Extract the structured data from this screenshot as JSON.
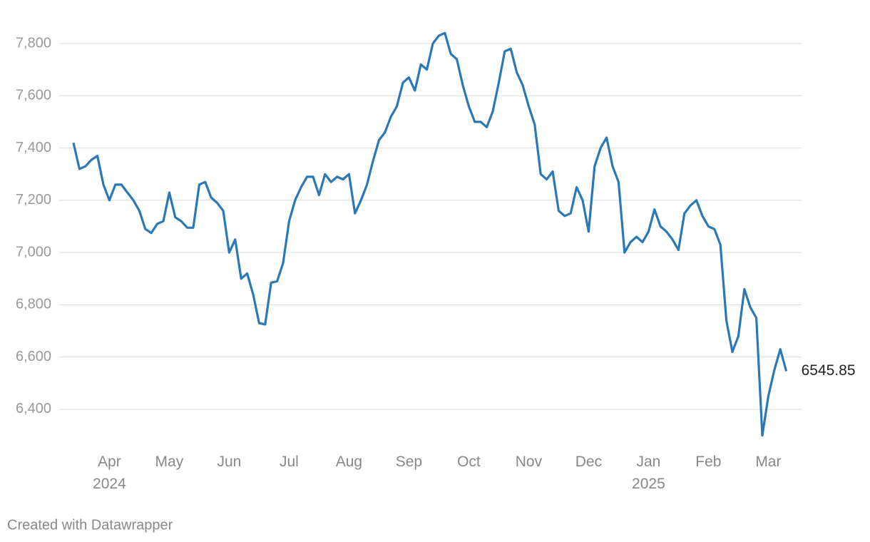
{
  "chart_data": {
    "type": "line",
    "categories": [
      null,
      null,
      null,
      null,
      null,
      null,
      "Apr 2024",
      null,
      null,
      null,
      null,
      null,
      null,
      null,
      null,
      null,
      "May",
      null,
      null,
      null,
      null,
      null,
      null,
      null,
      null,
      null,
      "Jun",
      null,
      null,
      null,
      null,
      null,
      null,
      null,
      null,
      null,
      "Jul",
      null,
      null,
      null,
      null,
      null,
      null,
      null,
      null,
      null,
      "Aug",
      null,
      null,
      null,
      null,
      null,
      null,
      null,
      null,
      null,
      "Sep",
      null,
      null,
      null,
      null,
      null,
      null,
      null,
      null,
      null,
      "Oct",
      null,
      null,
      null,
      null,
      null,
      null,
      null,
      null,
      null,
      "Nov",
      null,
      null,
      null,
      null,
      null,
      null,
      null,
      null,
      null,
      "Dec",
      null,
      null,
      null,
      null,
      null,
      null,
      null,
      null,
      null,
      "Jan 2025",
      null,
      null,
      null,
      null,
      null,
      null,
      null,
      null,
      null,
      "Feb",
      null,
      null,
      null,
      null,
      null,
      null,
      null,
      null,
      null,
      "Mar",
      null,
      null,
      null
    ],
    "values": [
      7420,
      7320,
      7330,
      7355,
      7370,
      7260,
      7200,
      7260,
      7260,
      7230,
      7200,
      7160,
      7090,
      7075,
      7110,
      7120,
      7230,
      7135,
      7120,
      7095,
      7095,
      7260,
      7270,
      7210,
      7190,
      7160,
      7000,
      7050,
      6900,
      6920,
      6840,
      6730,
      6725,
      6885,
      6890,
      6960,
      7120,
      7200,
      7250,
      7290,
      7290,
      7220,
      7300,
      7270,
      7290,
      7280,
      7300,
      7150,
      7200,
      7260,
      7350,
      7430,
      7460,
      7520,
      7560,
      7650,
      7670,
      7620,
      7720,
      7700,
      7800,
      7830,
      7840,
      7760,
      7740,
      7640,
      7560,
      7500,
      7500,
      7480,
      7540,
      7650,
      7770,
      7780,
      7690,
      7640,
      7560,
      7490,
      7300,
      7280,
      7310,
      7160,
      7140,
      7150,
      7250,
      7200,
      7080,
      7330,
      7400,
      7440,
      7330,
      7270,
      7000,
      7040,
      7060,
      7040,
      7080,
      7165,
      7100,
      7080,
      7050,
      7010,
      7150,
      7180,
      7200,
      7140,
      7100,
      7090,
      7030,
      6740,
      6620,
      6680,
      6860,
      6790,
      6750,
      6300,
      6450,
      6550,
      6630,
      6545.85
    ],
    "color": "#2a78b5",
    "ylim": [
      6270,
      7910
    ],
    "yticks": [
      {
        "value": 6400,
        "label": "6,400"
      },
      {
        "value": 6600,
        "label": "6,600"
      },
      {
        "value": 6800,
        "label": "6,800"
      },
      {
        "value": 7000,
        "label": "7,000"
      },
      {
        "value": 7200,
        "label": "7,200"
      },
      {
        "value": 7400,
        "label": "7,400"
      },
      {
        "value": 7600,
        "label": "7,600"
      },
      {
        "value": 7800,
        "label": "7,800"
      }
    ],
    "grid": true,
    "footer": "Created with Datawrapper"
  }
}
